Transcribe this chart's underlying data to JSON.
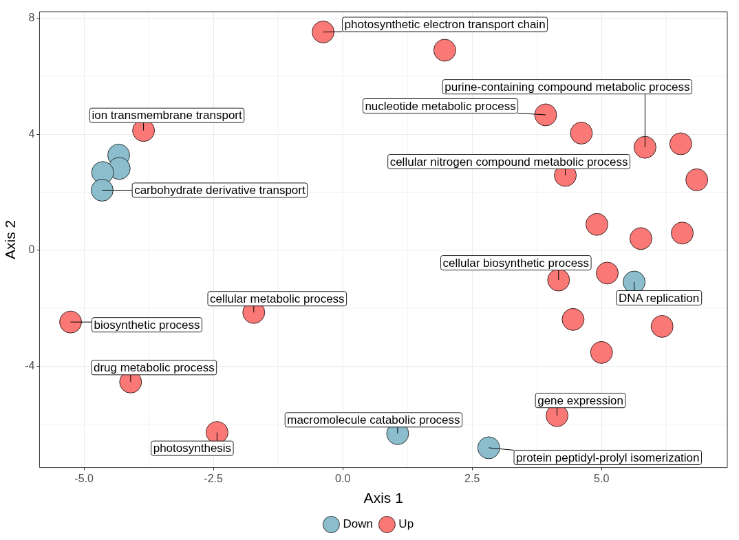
{
  "chart_data": {
    "type": "scatter",
    "xlabel": "Axis 1",
    "ylabel": "Axis 2",
    "xlim": [
      -5.86,
      7.43
    ],
    "ylim": [
      -7.5,
      8.23
    ],
    "xticks": [
      {
        "value": -5,
        "label": "-5.0"
      },
      {
        "value": -2.5,
        "label": "-2.5"
      },
      {
        "value": 0,
        "label": "0.0"
      },
      {
        "value": 2.5,
        "label": "2.5"
      },
      {
        "value": 5,
        "label": "5.0"
      }
    ],
    "yticks": [
      -4,
      0,
      4,
      8
    ],
    "grid": true,
    "legend": "bottom",
    "marker": "circle",
    "series": [
      {
        "name": "Down",
        "color": "#8bbdcc",
        "x": [
          -4.33,
          -4.32,
          -4.64,
          -4.65,
          5.63,
          1.06,
          2.82
        ],
        "values": [
          3.28,
          2.82,
          2.68,
          2.07,
          -1.1,
          -6.33,
          -6.82
        ]
      },
      {
        "name": "Up",
        "color": "#fa7876",
        "x": [
          -0.38,
          1.97,
          -3.85,
          3.92,
          4.61,
          5.84,
          6.53,
          6.84,
          4.3,
          4.91,
          5.76,
          6.56,
          5.11,
          4.17,
          -1.72,
          -5.26,
          4.45,
          6.17,
          5.0,
          -4.1,
          -2.43,
          4.14
        ],
        "values": [
          7.53,
          6.9,
          4.13,
          4.67,
          4.04,
          3.55,
          3.67,
          2.43,
          2.58,
          0.89,
          0.4,
          0.59,
          -0.79,
          -1.03,
          -2.15,
          -2.48,
          -2.39,
          -2.63,
          -3.53,
          -4.55,
          -6.29,
          -5.71
        ]
      }
    ],
    "annotations": [
      {
        "text": "photosynthetic electron transport chain",
        "x": -0.38,
        "y": 7.53
      },
      {
        "text": "ion transmembrane transport",
        "x": -3.85,
        "y": 4.13
      },
      {
        "text": "carbohydrate derivative transport",
        "x": -4.65,
        "y": 2.07
      },
      {
        "text": "nucleotide metabolic process",
        "x": 3.92,
        "y": 4.67
      },
      {
        "text": "purine-containing compound metabolic process",
        "x": 5.84,
        "y": 3.55
      },
      {
        "text": "cellular nitrogen compound metabolic process",
        "x": 4.3,
        "y": 2.58
      },
      {
        "text": "cellular biosynthetic process",
        "x": 4.17,
        "y": -1.03
      },
      {
        "text": "DNA replication",
        "x": 5.63,
        "y": -1.1
      },
      {
        "text": "cellular metabolic process",
        "x": -1.72,
        "y": -2.15
      },
      {
        "text": "biosynthetic process",
        "x": -5.26,
        "y": -2.48
      },
      {
        "text": "drug metabolic process",
        "x": -4.1,
        "y": -4.55
      },
      {
        "text": "gene expression",
        "x": 4.14,
        "y": -5.71
      },
      {
        "text": "macromolecule catabolic process",
        "x": 1.06,
        "y": -6.33
      },
      {
        "text": "photosynthesis",
        "x": -2.43,
        "y": -6.29
      },
      {
        "text": "protein peptidyl-prolyl isomerization",
        "x": 2.82,
        "y": -6.82
      }
    ]
  }
}
